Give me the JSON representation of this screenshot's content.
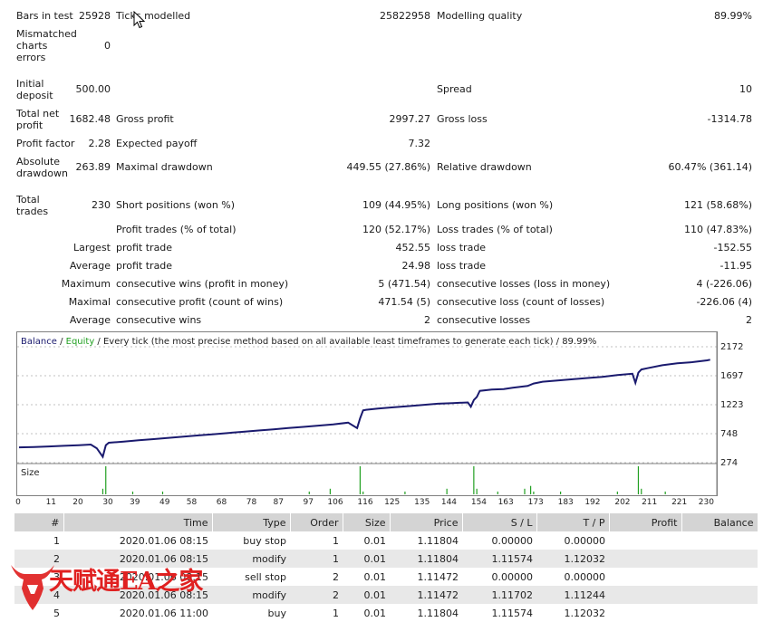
{
  "summary": {
    "bars_in_test_label": "Bars in test",
    "bars_in_test_value": "25928",
    "ticks_modelled_label": "Ticks modelled",
    "ticks_modelled_value": "25822958",
    "modelling_quality_label": "Modelling quality",
    "modelling_quality_value": "89.99%",
    "mismatched_label": "Mismatched charts errors",
    "mismatched_value": "0",
    "initial_deposit_label": "Initial deposit",
    "initial_deposit_value": "500.00",
    "spread_label": "Spread",
    "spread_value": "10",
    "total_net_profit_label": "Total net profit",
    "total_net_profit_value": "1682.48",
    "gross_profit_label": "Gross profit",
    "gross_profit_value": "2997.27",
    "gross_loss_label": "Gross loss",
    "gross_loss_value": "-1314.78",
    "profit_factor_label": "Profit factor",
    "profit_factor_value": "2.28",
    "expected_payoff_label": "Expected payoff",
    "expected_payoff_value": "7.32",
    "absolute_drawdown_label": "Absolute drawdown",
    "absolute_drawdown_value": "263.89",
    "maximal_drawdown_label": "Maximal drawdown",
    "maximal_drawdown_value": "449.55 (27.86%)",
    "relative_drawdown_label": "Relative drawdown",
    "relative_drawdown_value": "60.47% (361.14)",
    "total_trades_label": "Total trades",
    "total_trades_value": "230",
    "short_positions_label": "Short positions (won %)",
    "short_positions_value": "109 (44.95%)",
    "long_positions_label": "Long positions (won %)",
    "long_positions_value": "121 (58.68%)",
    "profit_trades_label": "Profit trades (% of total)",
    "profit_trades_value": "120 (52.17%)",
    "loss_trades_label": "Loss trades (% of total)",
    "loss_trades_value": "110 (47.83%)",
    "largest_label": "Largest",
    "largest_profit_label": "profit trade",
    "largest_profit_value": "452.55",
    "largest_loss_label": "loss trade",
    "largest_loss_value": "-152.55",
    "average_label": "Average",
    "average_profit_label": "profit trade",
    "average_profit_value": "24.98",
    "average_loss_label": "loss trade",
    "average_loss_value": "-11.95",
    "maximum_label": "Maximum",
    "max_cons_wins_label": "consecutive wins (profit in money)",
    "max_cons_wins_value": "5 (471.54)",
    "max_cons_losses_label": "consecutive losses (loss in money)",
    "max_cons_losses_value": "4 (-226.06)",
    "maximal_label": "Maximal",
    "maximal_cons_profit_label": "consecutive profit (count of wins)",
    "maximal_cons_profit_value": "471.54 (5)",
    "maximal_cons_loss_label": "consecutive loss (count of losses)",
    "maximal_cons_loss_value": "-226.06 (4)",
    "average2_label": "Average",
    "avg_cons_wins_label": "consecutive wins",
    "avg_cons_wins_value": "2",
    "avg_cons_losses_label": "consecutive losses",
    "avg_cons_losses_value": "2"
  },
  "chart_data": {
    "type": "line",
    "legend": {
      "balance": "Balance",
      "sep1": " / ",
      "equity": "Equity",
      "rest": " / Every tick (the most precise method based on all available least timeframes to generate each tick) / 89.99%"
    },
    "colors": {
      "balance": "#1a1a6e",
      "equity": "#22a022",
      "volume": "#22a022",
      "grid": "#c0c0c0"
    },
    "ylim": [
      274,
      2172
    ],
    "y_ticks": [
      "2172",
      "1697",
      "1223",
      "748",
      "274"
    ],
    "x_ticks": [
      "0",
      "11",
      "20",
      "30",
      "39",
      "49",
      "58",
      "68",
      "78",
      "87",
      "97",
      "106",
      "116",
      "125",
      "135",
      "144",
      "154",
      "163",
      "173",
      "183",
      "192",
      "202",
      "211",
      "221",
      "230"
    ],
    "xlim": [
      0,
      232
    ],
    "volume_label": "Size",
    "series": [
      {
        "name": "Balance",
        "x": [
          0,
          5,
          10,
          15,
          20,
          24,
          26,
          27,
          28,
          29,
          30,
          35,
          40,
          45,
          50,
          55,
          60,
          65,
          70,
          75,
          80,
          85,
          90,
          95,
          100,
          105,
          110,
          113,
          114,
          115,
          116,
          120,
          125,
          130,
          135,
          140,
          145,
          150,
          151,
          152,
          153,
          154,
          158,
          162,
          165,
          170,
          172,
          175,
          180,
          185,
          190,
          195,
          200,
          205,
          206,
          207,
          208,
          210,
          215,
          220,
          225,
          230,
          231
        ],
        "y": [
          525,
          530,
          540,
          550,
          560,
          570,
          510,
          440,
          370,
          560,
          600,
          620,
          640,
          660,
          680,
          700,
          720,
          740,
          760,
          780,
          800,
          820,
          840,
          860,
          880,
          900,
          930,
          840,
          1000,
          1130,
          1140,
          1160,
          1180,
          1200,
          1220,
          1240,
          1250,
          1260,
          1190,
          1300,
          1350,
          1450,
          1470,
          1480,
          1500,
          1530,
          1570,
          1600,
          1620,
          1640,
          1660,
          1680,
          1710,
          1730,
          1580,
          1750,
          1800,
          1820,
          1870,
          1900,
          1920,
          1950,
          1960
        ]
      }
    ],
    "volume": {
      "x": [
        28,
        29,
        38,
        48,
        97,
        104,
        114,
        115,
        129,
        143,
        152,
        153,
        160,
        169,
        171,
        172,
        181,
        200,
        207,
        208,
        216
      ],
      "y": [
        2,
        10,
        1,
        1,
        1,
        2,
        10,
        1,
        1,
        2,
        10,
        2,
        1,
        2,
        3,
        1,
        1,
        1,
        10,
        2,
        1
      ]
    }
  },
  "table": {
    "headers": [
      "#",
      "Time",
      "Type",
      "Order",
      "Size",
      "Price",
      "S / L",
      "T / P",
      "Profit",
      "Balance"
    ],
    "rows": [
      [
        "1",
        "2020.01.06 08:15",
        "buy stop",
        "1",
        "0.01",
        "1.11804",
        "0.00000",
        "0.00000",
        "",
        ""
      ],
      [
        "2",
        "2020.01.06 08:15",
        "modify",
        "1",
        "0.01",
        "1.11804",
        "1.11574",
        "1.12032",
        "",
        ""
      ],
      [
        "3",
        "2020.01.06 08:15",
        "sell stop",
        "2",
        "0.01",
        "1.11472",
        "0.00000",
        "0.00000",
        "",
        ""
      ],
      [
        "4",
        "2020.01.06 08:15",
        "modify",
        "2",
        "0.01",
        "1.11472",
        "1.11702",
        "1.11244",
        "",
        ""
      ],
      [
        "5",
        "2020.01.06 11:00",
        "buy",
        "1",
        "0.01",
        "1.11804",
        "1.11574",
        "1.12032",
        "",
        ""
      ]
    ]
  },
  "watermark": {
    "text": "天赋通EA之家"
  }
}
